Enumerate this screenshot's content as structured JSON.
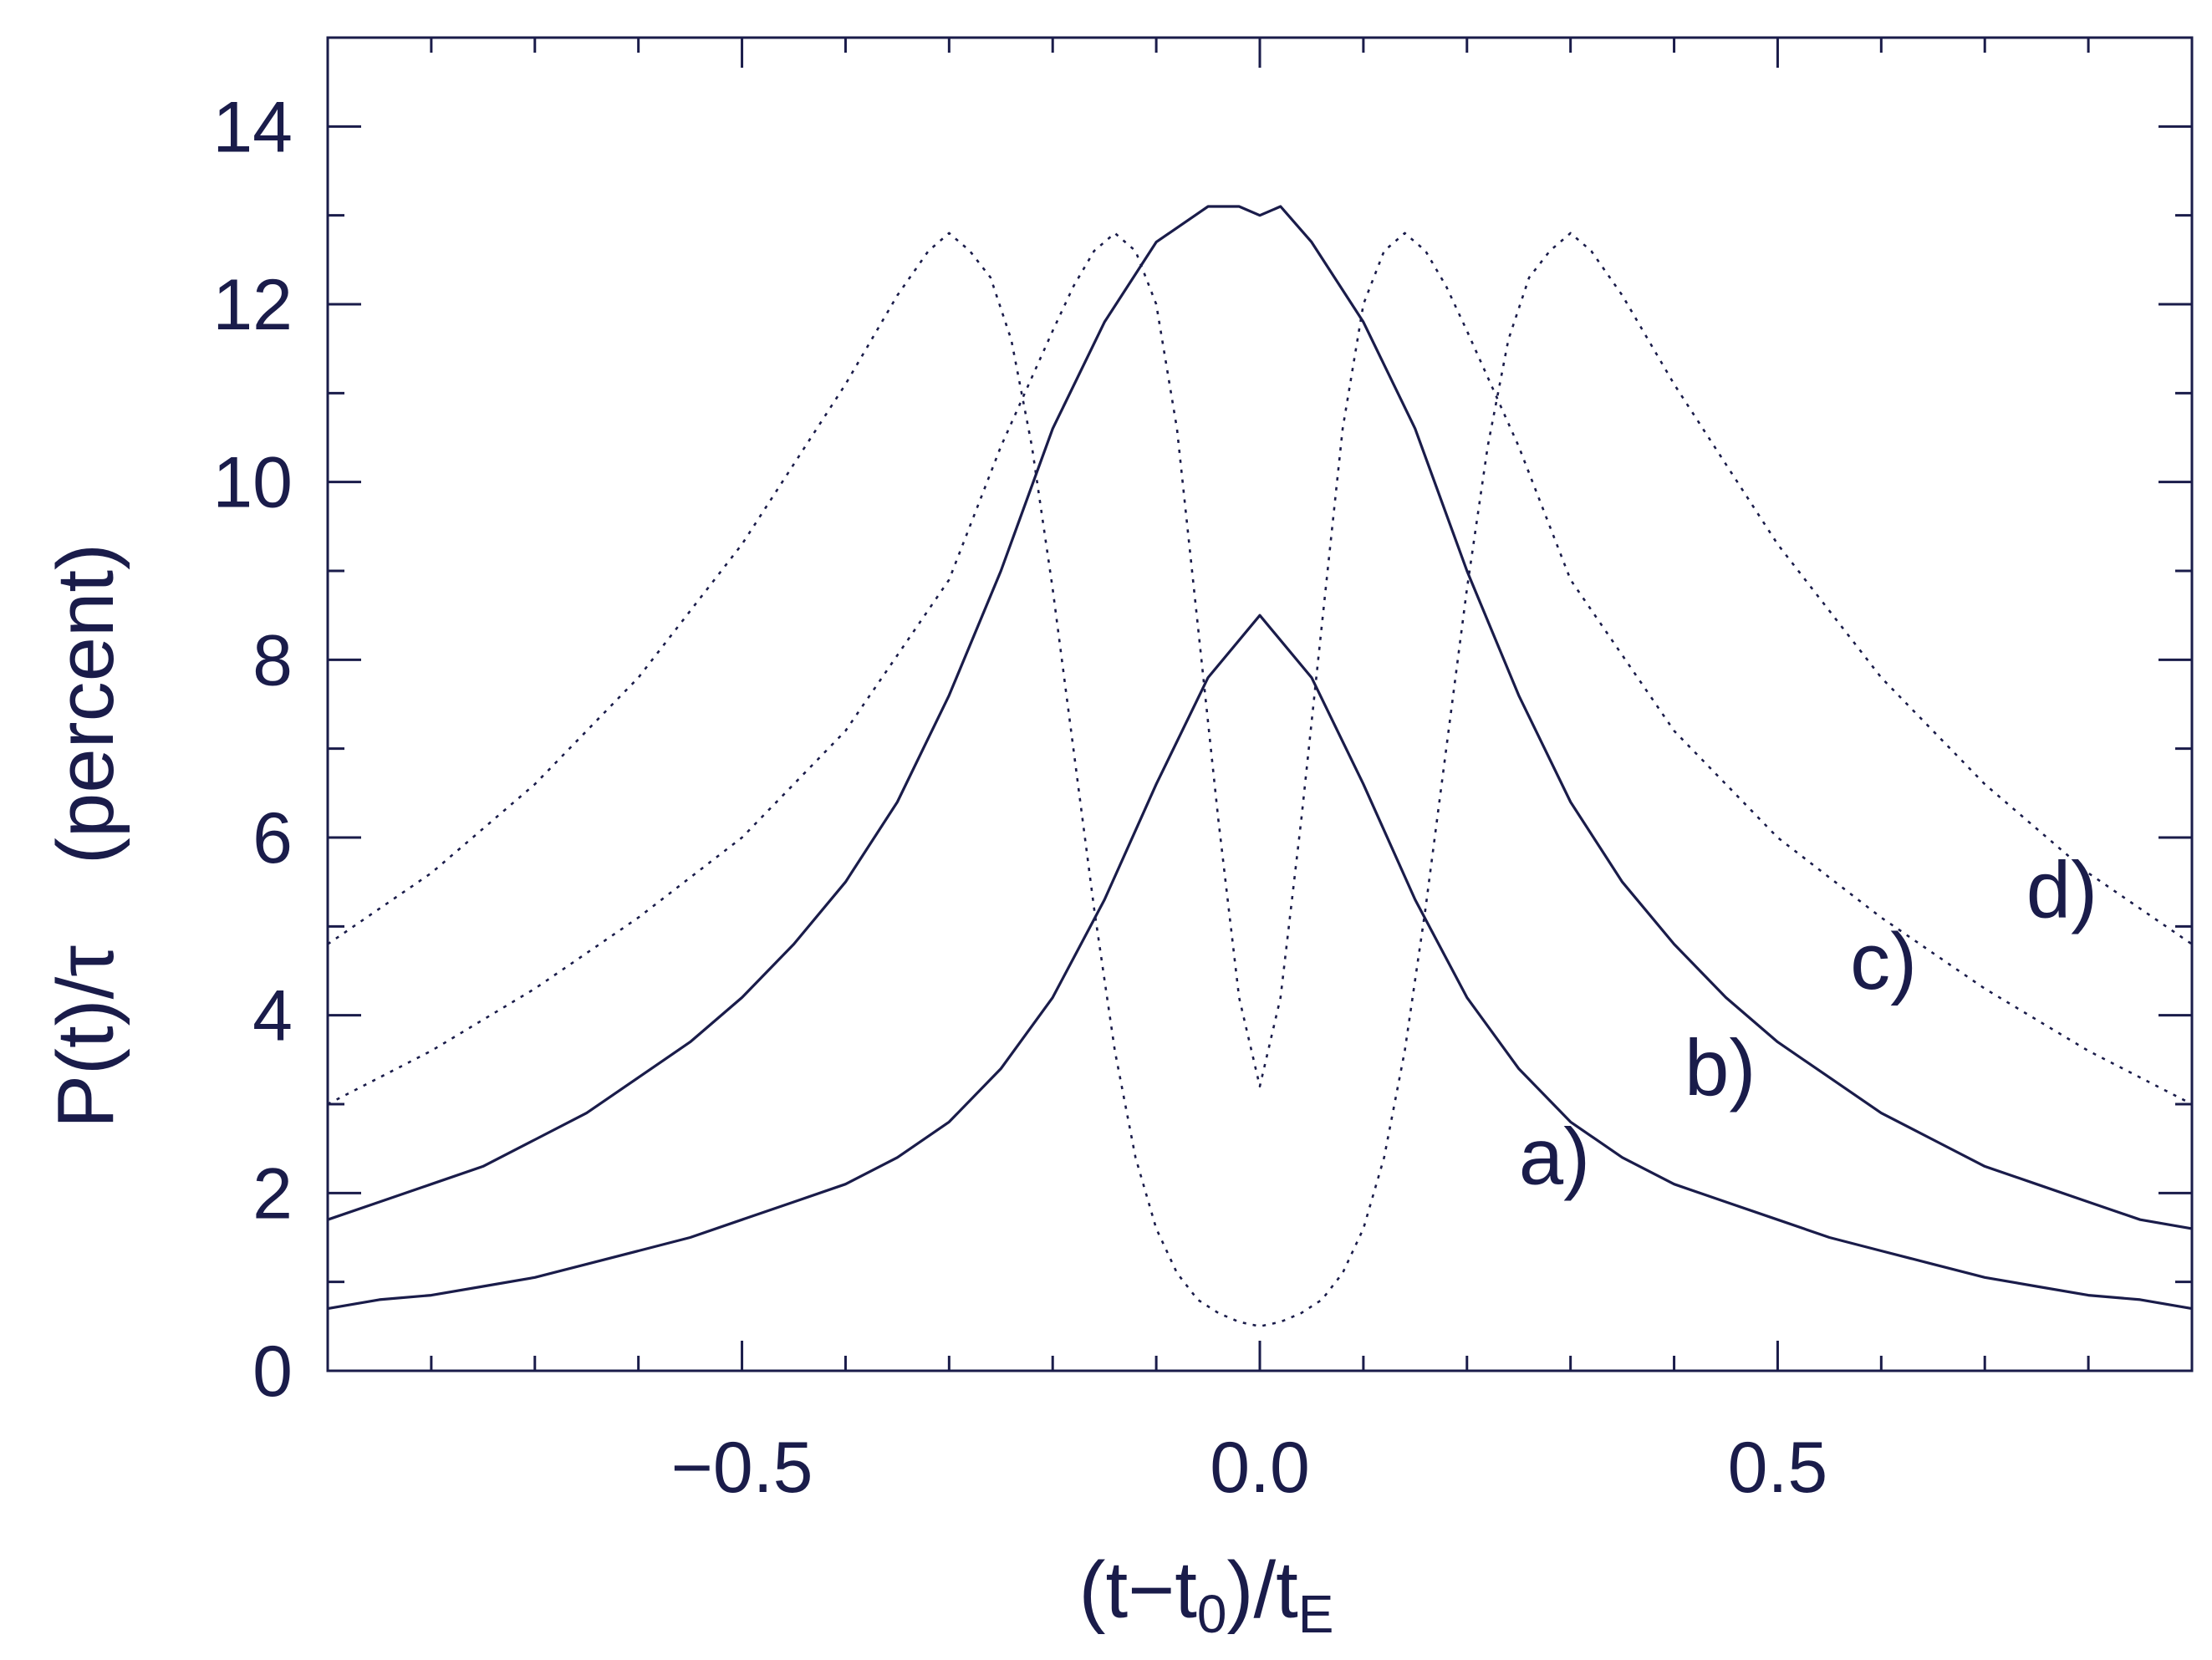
{
  "chart_data": {
    "type": "line",
    "xlabel": {
      "open": "(t−t",
      "sub1": "0",
      "mid": ")/t",
      "sub2": "E"
    },
    "ylabel": {
      "main": "P(t)/τ",
      "unit": "(percent)"
    },
    "xlim": [
      -0.9,
      0.9
    ],
    "ylim": [
      0,
      15
    ],
    "xticks": [
      {
        "value": -0.5,
        "label": "−0.5"
      },
      {
        "value": 0.0,
        "label": "0.0"
      },
      {
        "value": 0.5,
        "label": "0.5"
      }
    ],
    "yticks": [
      {
        "value": 0,
        "label": "0"
      },
      {
        "value": 2,
        "label": "2"
      },
      {
        "value": 4,
        "label": "4"
      },
      {
        "value": 6,
        "label": "6"
      },
      {
        "value": 8,
        "label": "8"
      },
      {
        "value": 10,
        "label": "10"
      },
      {
        "value": 12,
        "label": "12"
      },
      {
        "value": 14,
        "label": "14"
      }
    ],
    "x_minor_step": 0.1,
    "y_minor_step": 1,
    "colors": {
      "line": "#1a1c4a",
      "axis": "#1a1c4a",
      "background": "#ffffff"
    },
    "series": [
      {
        "label": "a)",
        "style": "solid",
        "label_pos": {
          "x": 0.25,
          "y": 2.1
        },
        "x": [
          -0.9,
          -0.85,
          -0.8,
          -0.75,
          -0.7,
          -0.65,
          -0.6,
          -0.55,
          -0.5,
          -0.45,
          -0.4,
          -0.35,
          -0.3,
          -0.25,
          -0.2,
          -0.15,
          -0.1,
          -0.05,
          0,
          0.05,
          0.1,
          0.15,
          0.2,
          0.25,
          0.3,
          0.35,
          0.4,
          0.45,
          0.5,
          0.55,
          0.6,
          0.65,
          0.7,
          0.75,
          0.8,
          0.85,
          0.9
        ],
        "y": [
          0.7,
          0.8,
          0.85,
          0.95,
          1.05,
          1.2,
          1.35,
          1.5,
          1.7,
          1.9,
          2.1,
          2.4,
          2.8,
          3.4,
          4.2,
          5.3,
          6.6,
          7.8,
          8.5,
          7.8,
          6.6,
          5.3,
          4.2,
          3.4,
          2.8,
          2.4,
          2.1,
          1.9,
          1.7,
          1.5,
          1.35,
          1.2,
          1.05,
          0.95,
          0.85,
          0.8,
          0.7
        ]
      },
      {
        "label": "b)",
        "style": "solid",
        "label_pos": {
          "x": 0.41,
          "y": 3.1
        },
        "x": [
          -0.9,
          -0.85,
          -0.8,
          -0.75,
          -0.7,
          -0.65,
          -0.6,
          -0.55,
          -0.5,
          -0.45,
          -0.4,
          -0.35,
          -0.3,
          -0.25,
          -0.2,
          -0.15,
          -0.1,
          -0.05,
          -0.02,
          0,
          0.02,
          0.05,
          0.1,
          0.15,
          0.2,
          0.25,
          0.3,
          0.35,
          0.4,
          0.45,
          0.5,
          0.55,
          0.6,
          0.65,
          0.7,
          0.75,
          0.8,
          0.85,
          0.9
        ],
        "y": [
          1.7,
          1.9,
          2.1,
          2.3,
          2.6,
          2.9,
          3.3,
          3.7,
          4.2,
          4.8,
          5.5,
          6.4,
          7.6,
          9.0,
          10.6,
          11.8,
          12.7,
          13.1,
          13.1,
          13.0,
          13.1,
          12.7,
          11.8,
          10.6,
          9.0,
          7.6,
          6.4,
          5.5,
          4.8,
          4.2,
          3.7,
          3.3,
          2.9,
          2.6,
          2.3,
          2.1,
          1.9,
          1.7,
          1.6
        ]
      },
      {
        "label": "c)",
        "style": "dotted",
        "label_pos": {
          "x": 0.57,
          "y": 4.3
        },
        "x": [
          -0.9,
          -0.8,
          -0.7,
          -0.6,
          -0.5,
          -0.4,
          -0.3,
          -0.25,
          -0.2,
          -0.18,
          -0.16,
          -0.14,
          -0.12,
          -0.1,
          -0.08,
          -0.06,
          -0.04,
          -0.02,
          0,
          0.02,
          0.04,
          0.06,
          0.08,
          0.1,
          0.12,
          0.14,
          0.16,
          0.18,
          0.2,
          0.25,
          0.3,
          0.4,
          0.5,
          0.6,
          0.7,
          0.8,
          0.9
        ],
        "y": [
          3.0,
          3.6,
          4.3,
          5.1,
          6.0,
          7.2,
          8.9,
          10.4,
          11.7,
          12.2,
          12.6,
          12.8,
          12.6,
          12.0,
          10.6,
          8.4,
          6.2,
          4.2,
          3.2,
          4.2,
          6.2,
          8.4,
          10.6,
          12.0,
          12.6,
          12.8,
          12.6,
          12.2,
          11.7,
          10.4,
          8.9,
          7.2,
          6.0,
          5.1,
          4.3,
          3.6,
          3.0
        ]
      },
      {
        "label": "d)",
        "style": "dotted",
        "label_pos": {
          "x": 0.74,
          "y": 5.1
        },
        "x": [
          -0.9,
          -0.8,
          -0.7,
          -0.6,
          -0.5,
          -0.45,
          -0.4,
          -0.35,
          -0.32,
          -0.3,
          -0.28,
          -0.26,
          -0.24,
          -0.22,
          -0.2,
          -0.18,
          -0.16,
          -0.14,
          -0.12,
          -0.1,
          -0.08,
          -0.06,
          -0.04,
          -0.02,
          0,
          0.02,
          0.04,
          0.06,
          0.08,
          0.1,
          0.12,
          0.14,
          0.16,
          0.18,
          0.2,
          0.22,
          0.24,
          0.26,
          0.28,
          0.3,
          0.32,
          0.35,
          0.4,
          0.45,
          0.5,
          0.6,
          0.7,
          0.8,
          0.9
        ],
        "y": [
          4.8,
          5.6,
          6.6,
          7.8,
          9.3,
          10.2,
          11.1,
          12.1,
          12.6,
          12.8,
          12.6,
          12.3,
          11.6,
          10.4,
          8.8,
          7.0,
          5.2,
          3.6,
          2.4,
          1.6,
          1.1,
          0.8,
          0.65,
          0.55,
          0.5,
          0.55,
          0.65,
          0.8,
          1.1,
          1.6,
          2.4,
          3.6,
          5.2,
          7.0,
          8.8,
          10.4,
          11.6,
          12.3,
          12.6,
          12.8,
          12.6,
          12.1,
          11.1,
          10.2,
          9.3,
          7.8,
          6.6,
          5.6,
          4.8
        ]
      }
    ]
  }
}
